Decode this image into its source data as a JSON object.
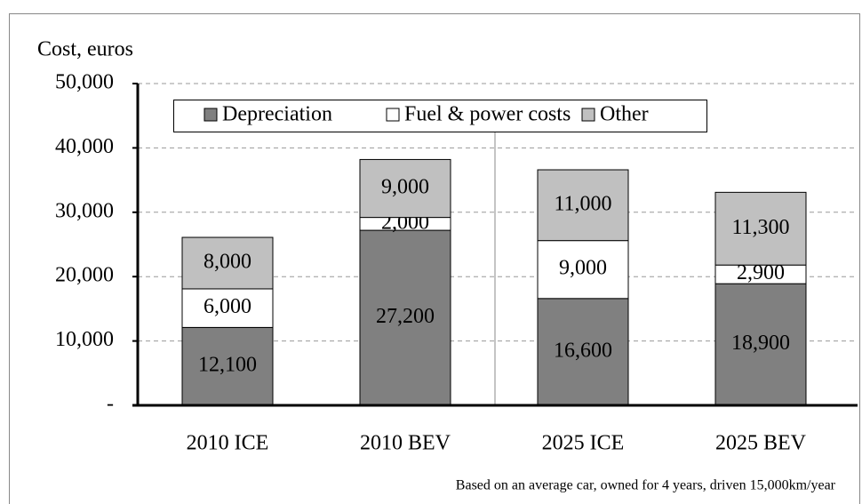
{
  "chart_data": {
    "type": "stacked_bar",
    "y_label": "Cost, euros",
    "note": "Based on an average car, owned for 4 years, driven 15,000km/year",
    "categories": [
      "2010 ICE",
      "2010 BEV",
      "2025 ICE",
      "2025 BEV"
    ],
    "series": [
      {
        "name": "Depreciation",
        "color": "#808080",
        "values": [
          12100,
          27200,
          16600,
          18900
        ],
        "value_labels": [
          "12,100",
          "27,200",
          "16,600",
          "18,900"
        ]
      },
      {
        "name": "Fuel & power costs",
        "color": "#ffffff",
        "values": [
          6000,
          2000,
          9000,
          2900
        ],
        "value_labels": [
          "6,000",
          "2,000",
          "9,000",
          "2,900"
        ]
      },
      {
        "name": "Other",
        "color": "#c0c0c0",
        "values": [
          8000,
          9000,
          11000,
          11300
        ],
        "value_labels": [
          "8,000",
          "9,000",
          "11,000",
          "11,300"
        ]
      }
    ],
    "ylim": [
      0,
      50000
    ],
    "yticks": [
      {
        "value": 0,
        "label": "-"
      },
      {
        "value": 10000,
        "label": "10,000"
      },
      {
        "value": 20000,
        "label": "20,000"
      },
      {
        "value": 30000,
        "label": "30,000"
      },
      {
        "value": 40000,
        "label": "40,000"
      },
      {
        "value": 50000,
        "label": "50,000"
      }
    ],
    "grid": true,
    "legend": "top"
  }
}
